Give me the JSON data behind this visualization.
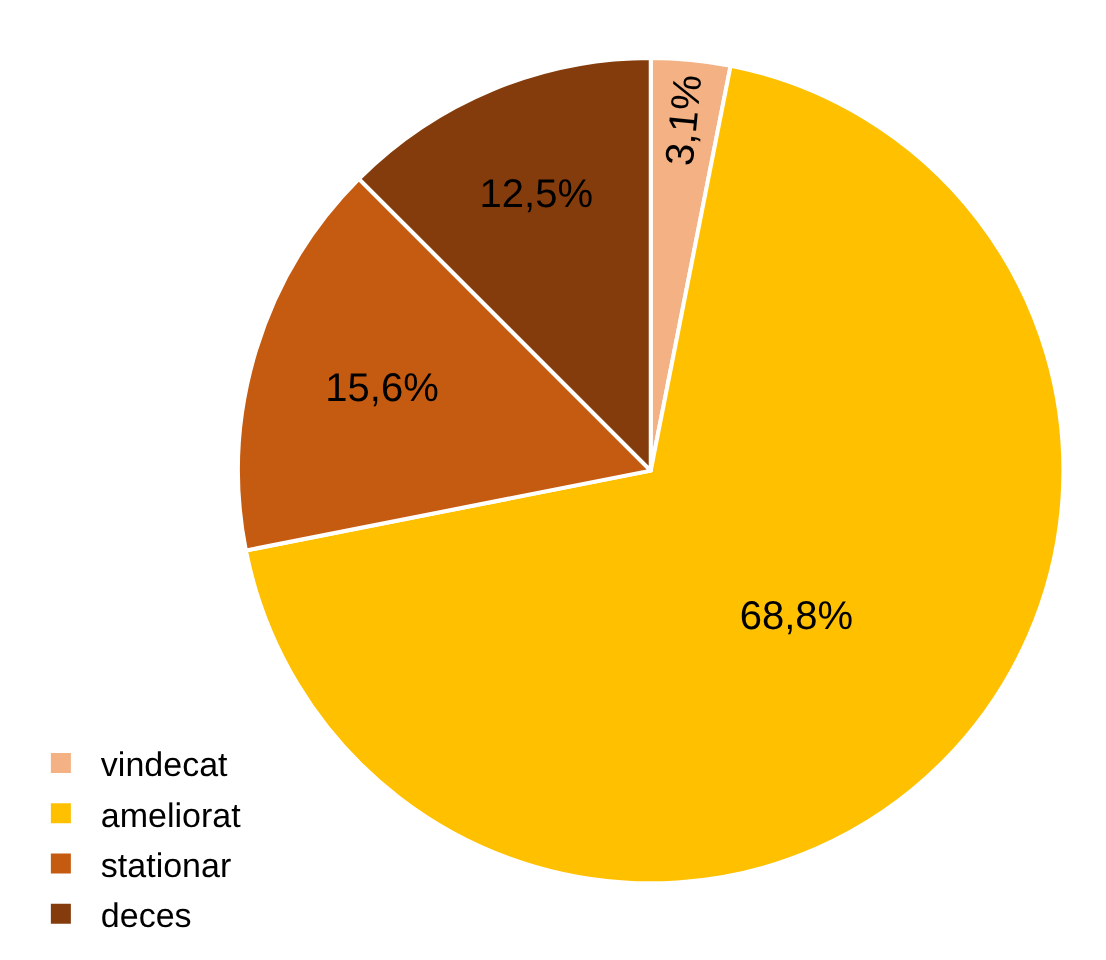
{
  "chart_data": {
    "type": "pie",
    "categories": [
      "vindecat",
      "ameliorat",
      "stationar",
      "deces"
    ],
    "values": [
      3.1,
      68.8,
      15.6,
      12.5
    ],
    "value_labels": [
      "3,1%",
      "68,8%",
      "15,6%",
      "12,5%"
    ],
    "colors": [
      "#f4b183",
      "#ffc000",
      "#c55a11",
      "#843c0c"
    ],
    "legend": "bottom left"
  }
}
